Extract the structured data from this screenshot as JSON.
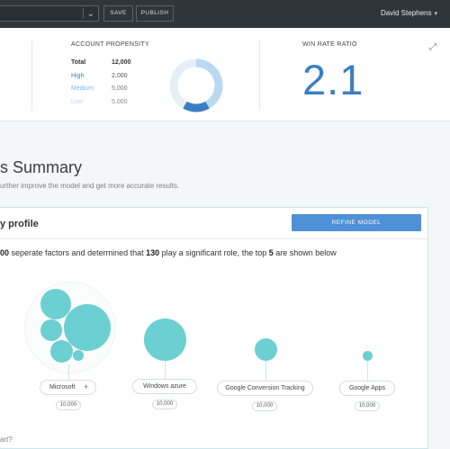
{
  "topbar": {
    "save_label": "SAVE",
    "publish_label": "PUBLISH",
    "user_name": "David Stephens"
  },
  "metrics": {
    "propensity_title": "ACCOUNT PROPENSITY",
    "rows": [
      {
        "label": "Total",
        "value": "12,000",
        "color": "#222222"
      },
      {
        "label": "High",
        "value": "2,000",
        "color": "#3a7fc4"
      },
      {
        "label": "Medium",
        "value": "5,000",
        "color": "#7fb6e3"
      },
      {
        "label": "Low",
        "value": "5,000",
        "color": "#b8d8f0"
      }
    ],
    "donut_colors": {
      "high": "#3a7fc4",
      "medium": "#b9d9f2",
      "low": "#d8e9f6"
    },
    "winrate_title": "WIN RATE RATIO",
    "winrate_value": "2.1"
  },
  "summary": {
    "title": "s Summary",
    "subtitle": "urther improve the model and get more accurate results."
  },
  "card": {
    "title": "y profile",
    "refine_label": "REFINE MODEL",
    "desc_a": "00",
    "desc_b": " seperate factors and determined that ",
    "desc_c": "130",
    "desc_d": " play a significant role, the top ",
    "desc_e": "5",
    "desc_f": " are shown below"
  },
  "factors": [
    {
      "name": "Microsoft",
      "count": "10,000"
    },
    {
      "name": "Windows azure",
      "count": "10,000"
    },
    {
      "name": "Google Conversion Tracking",
      "count": "10,000"
    },
    {
      "name": "Google Apps",
      "count": "10,000"
    }
  ],
  "footer": {
    "text": "art?"
  },
  "colors": {
    "accent": "#4f91d6",
    "bubble": "#6ccfd1",
    "topbar": "#2f353b"
  }
}
